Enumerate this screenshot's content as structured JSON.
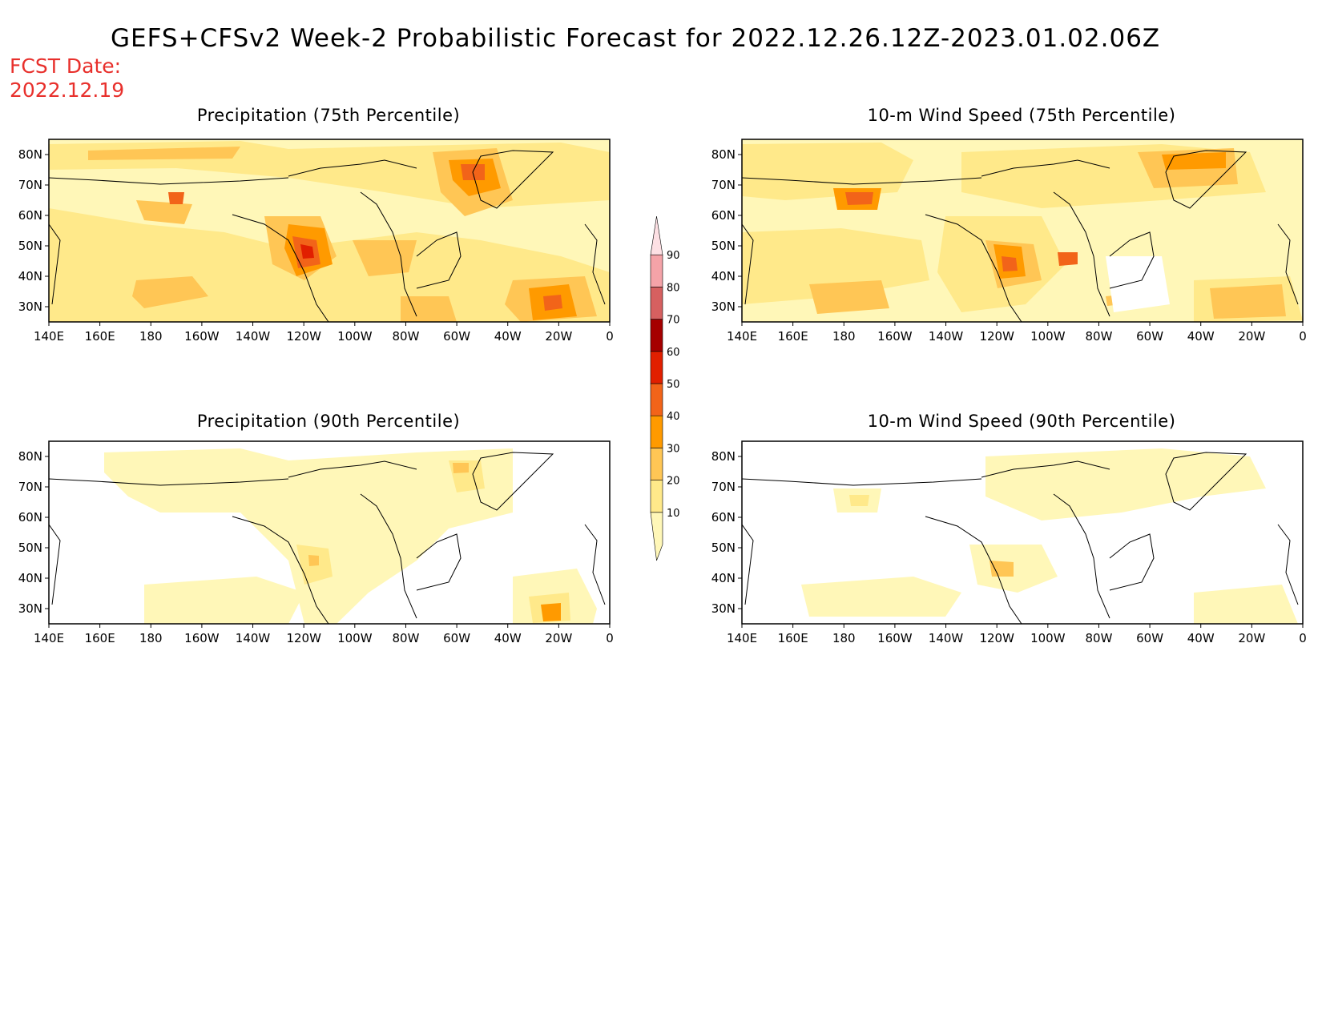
{
  "title": "GEFS+CFSv2 Week-2 Probabilistic Forecast for 2022.12.26.12Z-2023.01.02.06Z",
  "fcst_date_label": "FCST Date:",
  "fcst_date": "2022.12.19",
  "panels": [
    {
      "title": "Precipitation (75th Percentile)"
    },
    {
      "title": "10-m Wind Speed (75th Percentile)"
    },
    {
      "title": "Precipitation (90th Percentile)"
    },
    {
      "title": "10-m Wind Speed (90th Percentile)"
    }
  ],
  "axes": {
    "x_ticks": [
      "140E",
      "160E",
      "180",
      "160W",
      "140W",
      "120W",
      "100W",
      "80W",
      "60W",
      "40W",
      "20W",
      "0"
    ],
    "y_ticks": [
      "80N",
      "70N",
      "60N",
      "50N",
      "40N",
      "30N"
    ]
  },
  "colorbar": {
    "levels": [
      "10",
      "20",
      "30",
      "40",
      "50",
      "60",
      "70",
      "80",
      "90"
    ],
    "colors": [
      "#fff7b8",
      "#ffe98a",
      "#ffc655",
      "#ff9a00",
      "#f26419",
      "#e11f00",
      "#a50000",
      "#d66060",
      "#f4a3a8",
      "#fde0e4"
    ]
  },
  "colors": {
    "title_red": "#e8302c"
  }
}
